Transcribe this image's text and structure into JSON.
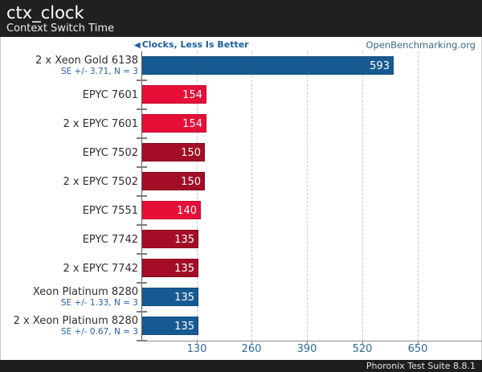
{
  "header": {
    "title": "ctx_clock",
    "subtitle": "Context Switch Time"
  },
  "meta": {
    "better_label": "Clocks, Less Is Better",
    "site": "OpenBenchmarking.org"
  },
  "footer": {
    "text": "Phoronix Test Suite 8.8.1"
  },
  "chart_data": {
    "type": "bar",
    "orientation": "horizontal",
    "title": "ctx_clock",
    "subtitle": "Context Switch Time",
    "xlabel": "Clocks",
    "better_direction": "less",
    "x_ticks": [
      130,
      260,
      390,
      520,
      650
    ],
    "xlim": [
      0,
      800
    ],
    "grid": "dashed-vertical",
    "legend_position": "none",
    "rows": [
      {
        "label": "2 x Xeon Gold 6138",
        "se": "SE +/- 3.71, N = 3",
        "value": 593,
        "color": "blue"
      },
      {
        "label": "EPYC 7601",
        "value": 154,
        "color": "red"
      },
      {
        "label": "2 x EPYC 7601",
        "value": 154,
        "color": "red"
      },
      {
        "label": "EPYC 7502",
        "value": 150,
        "color": "darkred"
      },
      {
        "label": "2 x EPYC 7502",
        "value": 150,
        "color": "darkred"
      },
      {
        "label": "EPYC 7551",
        "value": 140,
        "color": "red"
      },
      {
        "label": "EPYC 7742",
        "value": 135,
        "color": "darkred"
      },
      {
        "label": "2 x EPYC 7742",
        "value": 135,
        "color": "darkred"
      },
      {
        "label": "Xeon Platinum 8280",
        "se": "SE +/- 1.33, N = 3",
        "value": 135,
        "color": "blue"
      },
      {
        "label": "2 x Xeon Platinum 8280",
        "se": "SE +/- 0.67, N = 3",
        "value": 135,
        "color": "blue"
      }
    ],
    "colors": {
      "blue": {
        "fill": "#175a93",
        "border": "#114a7c"
      },
      "red": {
        "fill": "#e60f38",
        "border": "#c00d2f"
      },
      "darkred": {
        "fill": "#a30d26",
        "border": "#870a1f"
      }
    },
    "text_colors": {
      "tick_label": "#30689e",
      "se_label": "#2b62a8",
      "better_label": "#1b5e9e",
      "site_label": "#3a6d88"
    }
  }
}
